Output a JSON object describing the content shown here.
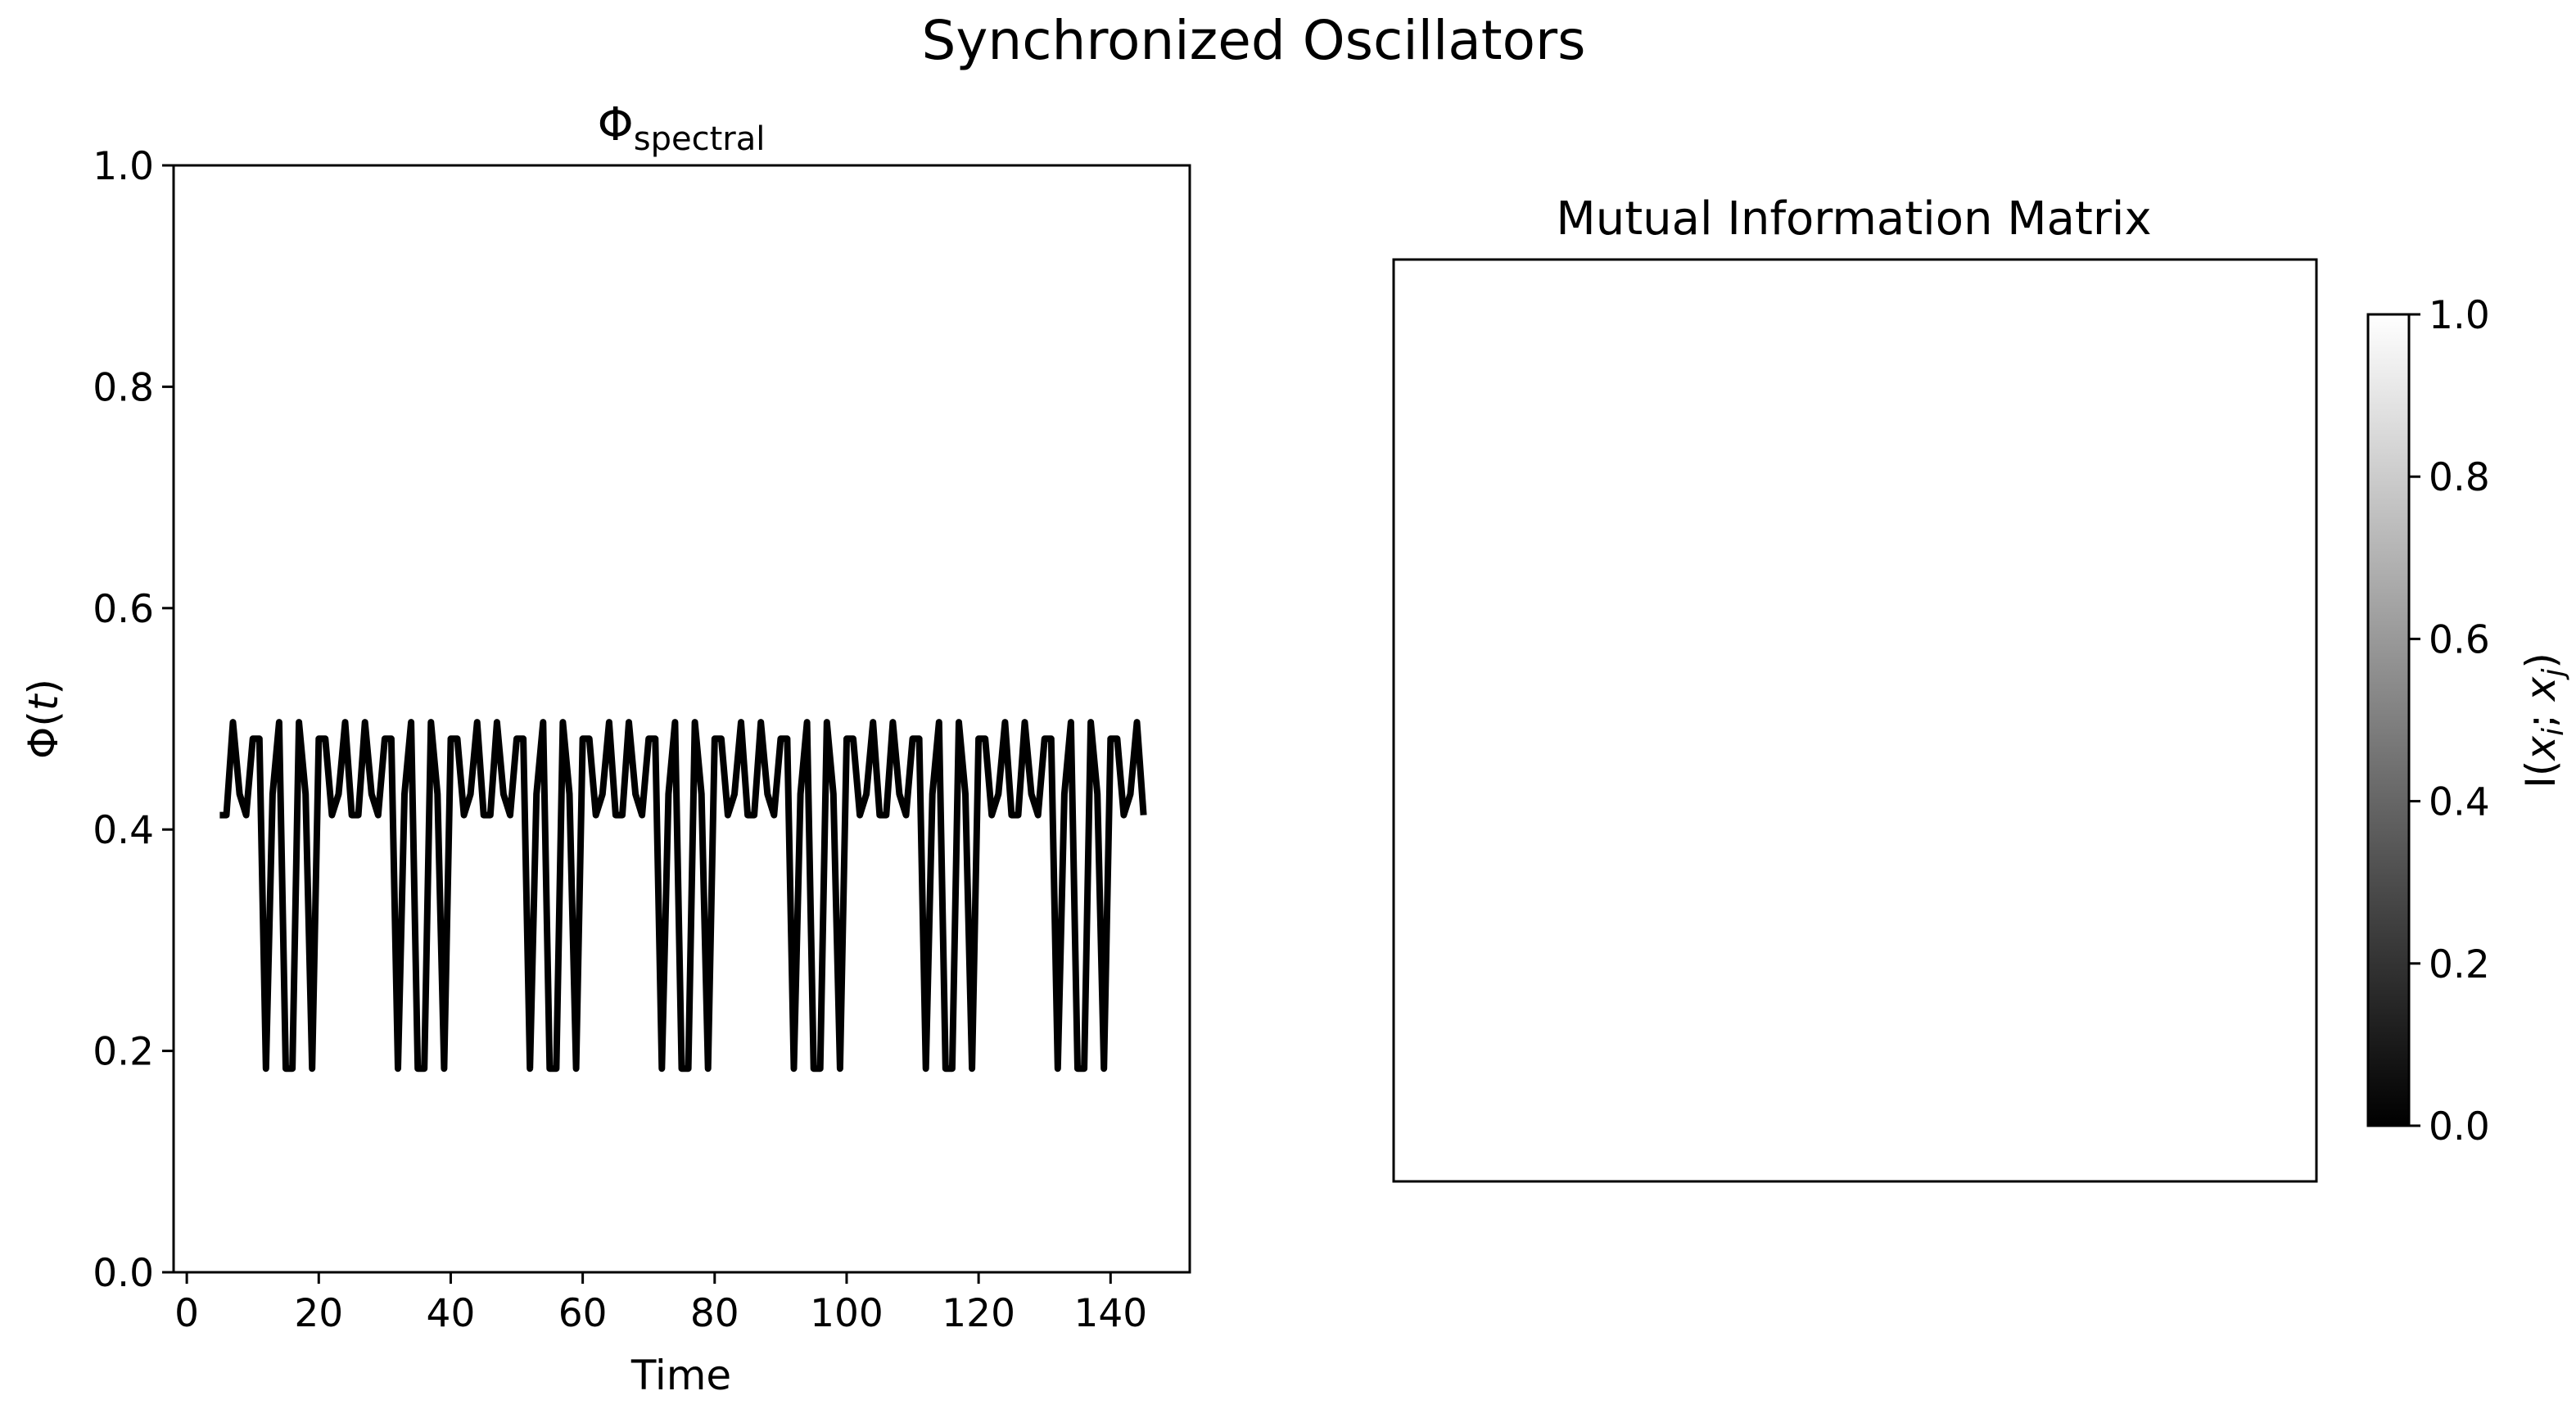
{
  "figure": {
    "title": "Synchronized Oscillators",
    "background": "#ffffff"
  },
  "chart_data": [
    {
      "type": "line",
      "title_main": "Φ",
      "title_sub": "spectral",
      "xlabel": "Time",
      "ylabel_main": "Φ(",
      "ylabel_var": "t",
      "ylabel_close": ")",
      "xlim": [
        -2,
        152
      ],
      "ylim": [
        0.0,
        1.0
      ],
      "xticks": [
        0,
        20,
        40,
        60,
        80,
        100,
        120,
        140
      ],
      "xtick_labels": [
        "0",
        "20",
        "40",
        "60",
        "80",
        "100",
        "120",
        "140"
      ],
      "yticks": [
        0.0,
        0.2,
        0.4,
        0.6,
        0.8,
        1.0
      ],
      "ytick_labels": [
        "0.0",
        "0.2",
        "0.4",
        "0.6",
        "0.8",
        "1.0"
      ],
      "grid": false,
      "line_color": "#000000",
      "series": [
        {
          "x": [
            5,
            6,
            7,
            8,
            9,
            10,
            11,
            12,
            13,
            14,
            15,
            16,
            17,
            18,
            19,
            20,
            21,
            22,
            23,
            24,
            25,
            26,
            27,
            28,
            29,
            30,
            31,
            32,
            33,
            34,
            35,
            36,
            37,
            38,
            39,
            40,
            41,
            42,
            43,
            44,
            45,
            46,
            47,
            48,
            49,
            50,
            51,
            52,
            53,
            54,
            55,
            56,
            57,
            58,
            59,
            60,
            61,
            62,
            63,
            64,
            65,
            66,
            67,
            68,
            69,
            70,
            71,
            72,
            73,
            74,
            75,
            76,
            77,
            78,
            79,
            80,
            81,
            82,
            83,
            84,
            85,
            86,
            87,
            88,
            89,
            90,
            91,
            92,
            93,
            94,
            95,
            96,
            97,
            98,
            99,
            100,
            101,
            102,
            103,
            104,
            105,
            106,
            107,
            108,
            109,
            110,
            111,
            112,
            113,
            114,
            115,
            116,
            117,
            118,
            119,
            120,
            121,
            122,
            123,
            124,
            125,
            126,
            127,
            128,
            129,
            130,
            131,
            132,
            133,
            134,
            135,
            136,
            137,
            138,
            139,
            140,
            141,
            142,
            143,
            144,
            145
          ],
          "y": [
            0.413,
            0.413,
            0.497,
            0.432,
            0.413,
            0.482,
            0.482,
            0.184,
            0.432,
            0.497,
            0.184,
            0.184,
            0.497,
            0.432,
            0.184,
            0.482,
            0.482,
            0.413,
            0.432,
            0.497,
            0.413,
            0.413,
            0.497,
            0.432,
            0.413,
            0.482,
            0.482,
            0.184,
            0.432,
            0.497,
            0.184,
            0.184,
            0.497,
            0.432,
            0.184,
            0.482,
            0.482,
            0.413,
            0.432,
            0.497,
            0.413,
            0.413,
            0.497,
            0.432,
            0.413,
            0.482,
            0.482,
            0.184,
            0.432,
            0.497,
            0.184,
            0.184,
            0.497,
            0.432,
            0.184,
            0.482,
            0.482,
            0.413,
            0.432,
            0.497,
            0.413,
            0.413,
            0.497,
            0.432,
            0.413,
            0.482,
            0.482,
            0.184,
            0.432,
            0.497,
            0.184,
            0.184,
            0.497,
            0.432,
            0.184,
            0.482,
            0.482,
            0.413,
            0.432,
            0.497,
            0.413,
            0.413,
            0.497,
            0.432,
            0.413,
            0.482,
            0.482,
            0.184,
            0.432,
            0.497,
            0.184,
            0.184,
            0.497,
            0.432,
            0.184,
            0.482,
            0.482,
            0.413,
            0.432,
            0.497,
            0.413,
            0.413,
            0.497,
            0.432,
            0.413,
            0.482,
            0.482,
            0.184,
            0.432,
            0.497,
            0.184,
            0.184,
            0.497,
            0.432,
            0.184,
            0.482,
            0.482,
            0.413,
            0.432,
            0.497,
            0.413,
            0.413,
            0.497,
            0.432,
            0.413,
            0.482,
            0.482,
            0.184,
            0.432,
            0.497,
            0.184,
            0.184,
            0.497,
            0.432,
            0.184,
            0.482,
            0.482,
            0.413,
            0.432,
            0.497,
            0.413
          ]
        }
      ]
    },
    {
      "type": "heatmap",
      "title": "Mutual Information Matrix",
      "colormap": "gray",
      "cell_color": "#ffffff",
      "xticks": [],
      "yticks": [],
      "colorbar": {
        "range": [
          0.0,
          1.0
        ],
        "ticks": [
          0.0,
          0.2,
          0.4,
          0.6,
          0.8,
          1.0
        ],
        "tick_labels": [
          "0.0",
          "0.2",
          "0.4",
          "0.6",
          "0.8",
          "1.0"
        ],
        "label_prefix": "I(",
        "label_x": "x",
        "label_i": "i",
        "label_sep": "; ",
        "label_j": "j",
        "label_suffix": ")",
        "color_min": "#000000",
        "color_max": "#ffffff"
      }
    }
  ]
}
